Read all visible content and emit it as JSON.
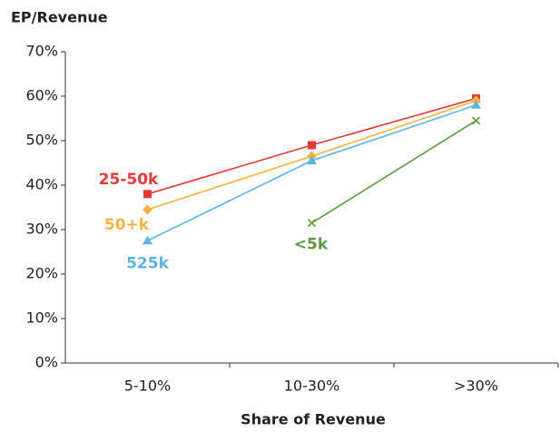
{
  "chart_data": {
    "type": "line",
    "title": "EP/Revenue",
    "x_label": "Share of Revenue",
    "categories": [
      "5-10%",
      "10-30%",
      ">30%"
    ],
    "series": [
      {
        "name": "25-50k",
        "color": "#e2393b",
        "marker": "square",
        "values": [
          38,
          49,
          59.5
        ]
      },
      {
        "name": "50+k",
        "color": "#f4b23e",
        "marker": "diamond",
        "values": [
          34.5,
          46.5,
          59
        ]
      },
      {
        "name": "525k",
        "color": "#5ab6e0",
        "marker": "triangle",
        "values": [
          27.5,
          45.5,
          58
        ]
      },
      {
        "name": "<5k",
        "color": "#5a9a3c",
        "marker": "x",
        "values": [
          null,
          31.5,
          54.5
        ]
      }
    ],
    "ylim": [
      0,
      70
    ],
    "yticks": [
      {
        "value": 0,
        "label": "0%"
      },
      {
        "value": 10,
        "label": "10%"
      },
      {
        "value": 20,
        "label": "20%"
      },
      {
        "value": 30,
        "label": "30%"
      },
      {
        "value": 40,
        "label": "40%"
      },
      {
        "value": 50,
        "label": "50%"
      },
      {
        "value": 60,
        "label": "60%"
      },
      {
        "value": 70,
        "label": "70%"
      }
    ],
    "grid": false
  }
}
